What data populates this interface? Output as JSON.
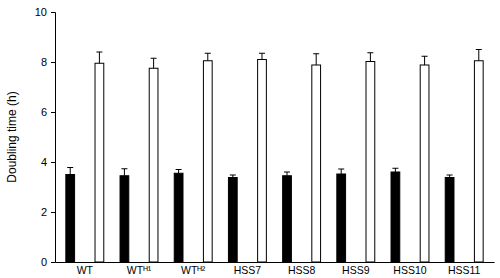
{
  "chart_data": {
    "type": "bar",
    "y_label": "Doubling time (h)",
    "categories": [
      "WT",
      "WTᴴ¹",
      "WTᴴ²",
      "HSS7",
      "HSS8",
      "HSS9",
      "HSS10",
      "HSS11"
    ],
    "series": [
      {
        "color": "#000000",
        "values": [
          3.5,
          3.45,
          3.55,
          3.38,
          3.45,
          3.52,
          3.6,
          3.38
        ],
        "errors": [
          0.28,
          0.28,
          0.15,
          0.1,
          0.15,
          0.2,
          0.15,
          0.1
        ]
      },
      {
        "color": "#ffffff",
        "values": [
          7.95,
          7.75,
          8.05,
          8.1,
          7.88,
          8.02,
          7.88,
          8.05
        ],
        "errors": [
          0.45,
          0.4,
          0.3,
          0.25,
          0.45,
          0.35,
          0.35,
          0.45
        ]
      }
    ],
    "ylim": [
      0,
      10
    ],
    "yticks": [
      0,
      2,
      4,
      6,
      8,
      10
    ],
    "grid": false
  }
}
